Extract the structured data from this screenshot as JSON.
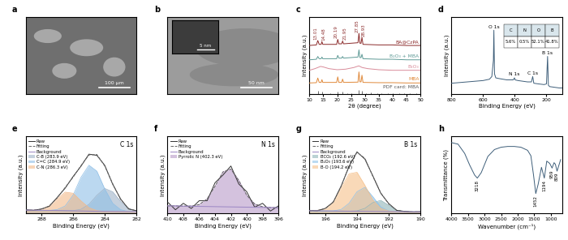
{
  "images": [
    {
      "panel": "a",
      "scale_bar": "100 μm"
    },
    {
      "panel": "b",
      "scale_bar": "50 nm",
      "inset_scale_bar": "5 nm"
    }
  ],
  "chart_data": [
    {
      "panel": "c",
      "type": "line",
      "x_label": "2θ (degree)",
      "y_label": "Intensity (a.u.)",
      "xlim": [
        10,
        50
      ],
      "xticks": [
        10,
        15,
        20,
        25,
        30,
        35,
        40,
        45,
        50
      ],
      "ylim": [
        0,
        14
      ],
      "tick_labels": "x",
      "annotations": [
        {
          "text": "13.01",
          "x": 13.01
        },
        {
          "text": "14.48",
          "x": 14.48
        },
        {
          "text": "20.19",
          "x": 20.19
        },
        {
          "text": "21.95",
          "x": 21.95
        },
        {
          "text": "27.85",
          "x": 27.85
        },
        {
          "text": "28.93",
          "x": 28.93
        }
      ],
      "series": [
        {
          "name": "BA@CzPA",
          "color": "#8b2b2b",
          "type": "line",
          "x": [
            10,
            12.5,
            13,
            13.5,
            14.2,
            14.5,
            14.8,
            19.8,
            20.2,
            20.6,
            21.6,
            21.95,
            22.3,
            27.5,
            27.85,
            28.2,
            28.6,
            28.93,
            29.3,
            35,
            40,
            45,
            50
          ],
          "values": [
            8.8,
            8.9,
            9.7,
            9.0,
            9.0,
            9.5,
            9.0,
            9.0,
            9.9,
            9.1,
            9.1,
            9.6,
            9.1,
            9.3,
            11.0,
            9.2,
            9.2,
            10.3,
            9.0,
            8.9,
            8.9,
            8.8,
            8.8
          ]
        },
        {
          "name": "B₂O₃ + MBA",
          "color": "#5e9a96",
          "type": "line",
          "x": [
            10,
            12.5,
            13,
            13.5,
            14.2,
            14.5,
            14.8,
            19.8,
            20.2,
            20.6,
            21.6,
            21.95,
            22.3,
            27.5,
            27.85,
            28.2,
            28.6,
            28.93,
            29.3,
            35,
            40,
            45,
            50
          ],
          "values": [
            6.2,
            6.3,
            6.8,
            6.4,
            6.4,
            6.7,
            6.4,
            6.4,
            7.0,
            6.5,
            6.5,
            6.8,
            6.5,
            6.7,
            8.0,
            6.6,
            6.6,
            7.2,
            6.4,
            6.3,
            6.3,
            6.2,
            6.2
          ]
        },
        {
          "name": "B₂O₃",
          "color": "#d98c9a",
          "type": "line",
          "x": [
            10,
            12,
            14,
            15,
            17,
            20,
            23,
            26,
            27.8,
            29,
            31,
            35,
            40,
            45,
            50
          ],
          "values": [
            4.3,
            4.6,
            5.0,
            4.9,
            4.6,
            4.4,
            4.5,
            4.8,
            5.1,
            4.8,
            4.6,
            4.4,
            4.3,
            4.3,
            4.3
          ]
        },
        {
          "name": "MBA",
          "color": "#e08a3c",
          "type": "line",
          "x": [
            10,
            12.5,
            13,
            13.5,
            14.2,
            14.5,
            14.8,
            19.8,
            20.2,
            20.6,
            21.6,
            21.95,
            22.3,
            27.5,
            27.85,
            28.2,
            28.6,
            28.93,
            29.3,
            35,
            40,
            45,
            50
          ],
          "values": [
            2.0,
            2.05,
            2.9,
            2.1,
            2.1,
            2.6,
            2.1,
            2.1,
            3.1,
            2.1,
            2.1,
            2.7,
            2.1,
            2.15,
            4.0,
            2.2,
            2.2,
            3.4,
            2.1,
            2.05,
            2.05,
            2.0,
            2.0
          ]
        },
        {
          "name": "PDF card: MBA",
          "color": "#555555",
          "type": "stem",
          "x": [
            13.0,
            14.5,
            17.5,
            20.2,
            21.9,
            23.5,
            25.0,
            27.8,
            28.9,
            30.3,
            32.0,
            34.5,
            36.0,
            38.2,
            40.1,
            42.5,
            44.0,
            46.3,
            48.5
          ],
          "values": [
            0.6,
            0.4,
            0.2,
            0.5,
            0.4,
            0.2,
            0.2,
            0.7,
            0.6,
            0.2,
            0.3,
            0.2,
            0.2,
            0.2,
            0.2,
            0.15,
            0.2,
            0.15,
            0.15
          ]
        }
      ]
    },
    {
      "panel": "d",
      "type": "line",
      "x_label": "Binding Energy (eV)",
      "y_label": "Intensity (a.u.)",
      "xlim": [
        800,
        100
      ],
      "xticks": [
        800,
        600,
        400,
        200
      ],
      "ylim": [
        0,
        11.5
      ],
      "tick_labels": "x",
      "annotations": [
        {
          "text": "O 1s",
          "x": 532
        },
        {
          "text": "N 1s",
          "x": 402
        },
        {
          "text": "C 1s",
          "x": 287
        },
        {
          "text": "B 1s",
          "x": 193
        }
      ],
      "table": {
        "columns": [
          "C",
          "N",
          "O",
          "B"
        ],
        "rows": [
          [
            "5.6%",
            "0.5%",
            "52.1%",
            "41.8%"
          ]
        ]
      },
      "series": [
        {
          "color": "#3f5f7a",
          "type": "line",
          "x": [
            800,
            750,
            700,
            650,
            600,
            560,
            545,
            535,
            532,
            528,
            520,
            500,
            450,
            410,
            402,
            398,
            380,
            320,
            295,
            287,
            284,
            280,
            250,
            215,
            200,
            193,
            188,
            180,
            150,
            120,
            100
          ],
          "values": [
            1.6,
            1.7,
            1.8,
            1.9,
            2.0,
            2.2,
            2.6,
            5.0,
            9.5,
            3.0,
            2.4,
            2.3,
            2.1,
            2.1,
            2.4,
            2.1,
            2.0,
            1.8,
            1.8,
            2.6,
            2.2,
            1.6,
            1.5,
            1.4,
            1.5,
            5.6,
            1.3,
            1.1,
            1.0,
            0.9,
            0.9
          ]
        }
      ]
    },
    {
      "panel": "e",
      "type": "line",
      "title": "C 1s",
      "x_label": "Binding Energy (eV)",
      "y_label": "Intensity (a.u.)",
      "x": [
        289,
        288.5,
        288,
        287.5,
        287,
        286.5,
        286,
        285.5,
        285,
        284.5,
        284,
        283.5,
        283,
        282.5,
        282
      ],
      "xlim": [
        289,
        282
      ],
      "xticks": [
        288,
        286,
        284,
        282
      ],
      "ylim": [
        0,
        10
      ],
      "tick_labels": "x",
      "legend": "upper left",
      "series": [
        {
          "name": "Raw",
          "color": "#333333",
          "type": "line",
          "line_style": "solid",
          "values": [
            0.5,
            0.42,
            0.6,
            0.95,
            2.1,
            3.3,
            4.8,
            6.15,
            7.7,
            7.55,
            6.25,
            3.8,
            1.9,
            0.6,
            0.38
          ]
        },
        {
          "name": "Fitting",
          "color": "#666666",
          "type": "line",
          "line_style": "dashed",
          "values": [
            0.45,
            0.45,
            0.56,
            1.0,
            2.04,
            3.39,
            4.71,
            6.23,
            7.6,
            7.66,
            6.16,
            3.88,
            1.82,
            0.67,
            0.33
          ]
        },
        {
          "name": "Background",
          "color": "#9b86c4",
          "type": "line",
          "line_style": "solid",
          "values": [
            0.45,
            0.44,
            0.43,
            0.42,
            0.4,
            0.38,
            0.36,
            0.34,
            0.32,
            0.3,
            0.29,
            0.28,
            0.27,
            0.26,
            0.25
          ]
        },
        {
          "name": "C-B (283.9 eV)",
          "color": "#9fb3c8",
          "type": "area",
          "values": [
            0.45,
            0.44,
            0.43,
            0.42,
            0.4,
            0.38,
            0.39,
            0.56,
            1.2,
            2.37,
            3.26,
            2.83,
            1.58,
            0.67,
            0.33
          ]
        },
        {
          "name": "C=C (284.9 eV)",
          "color": "#8fbfe6",
          "type": "area",
          "values": [
            0.45,
            0.44,
            0.43,
            0.42,
            0.52,
            0.99,
            2.4,
            4.71,
            6.27,
            5.5,
            3.19,
            1.33,
            0.51,
            0.26,
            0.25
          ]
        },
        {
          "name": "C-N (286.3 eV)",
          "color": "#f2b98a",
          "type": "area",
          "values": [
            0.45,
            0.45,
            0.56,
            1.0,
            1.92,
            2.78,
            2.64,
            1.64,
            0.77,
            0.39,
            0.29,
            0.28,
            0.27,
            0.26,
            0.25
          ]
        }
      ]
    },
    {
      "panel": "f",
      "type": "line",
      "title": "N 1s",
      "x_label": "Binding Energy (eV)",
      "y_label": "Intensity (a.u.)",
      "x": [
        410,
        409,
        408,
        407,
        406,
        405,
        404,
        403,
        402,
        401,
        400,
        399,
        398,
        397,
        396
      ],
      "xlim": [
        410,
        396
      ],
      "xticks": [
        410,
        408,
        406,
        404,
        402,
        400,
        398,
        396
      ],
      "ylim": [
        0,
        6
      ],
      "tick_labels": "x",
      "legend": "upper left",
      "series": [
        {
          "name": "Raw",
          "color": "#333333",
          "type": "line",
          "line_style": "solid",
          "values": [
            0.9,
            0.3,
            0.8,
            0.4,
            1.0,
            1.0,
            2.4,
            3.0,
            3.7,
            2.3,
            1.7,
            0.5,
            0.8,
            0.2,
            0.6
          ]
        },
        {
          "name": "Fitting",
          "color": "#666666",
          "type": "line",
          "line_style": "dashed",
          "values": [
            0.6,
            0.6,
            0.58,
            0.59,
            0.7,
            1.14,
            2.12,
            3.24,
            3.46,
            2.58,
            1.43,
            0.75,
            0.53,
            0.47,
            0.46
          ]
        },
        {
          "name": "Background",
          "color": "#9b86c4",
          "type": "line",
          "line_style": "solid",
          "values": [
            0.6,
            0.6,
            0.58,
            0.57,
            0.56,
            0.55,
            0.54,
            0.53,
            0.52,
            0.51,
            0.5,
            0.49,
            0.48,
            0.47,
            0.46
          ]
        },
        {
          "name": "Pyrrolic N (402.3 eV)",
          "color": "#b89ac9",
          "type": "area",
          "values": [
            0.6,
            0.6,
            0.58,
            0.59,
            0.7,
            1.14,
            2.12,
            3.24,
            3.46,
            2.58,
            1.43,
            0.75,
            0.53,
            0.47,
            0.46
          ]
        }
      ]
    },
    {
      "panel": "g",
      "type": "line",
      "title": "B 1s",
      "x_label": "Binding Energy (eV)",
      "y_label": "Intensity (a.u.)",
      "x": [
        197,
        196.5,
        196,
        195.5,
        195,
        194.5,
        194,
        193.5,
        193,
        192.5,
        192,
        191.5,
        191,
        190.5,
        190
      ],
      "xlim": [
        197,
        190
      ],
      "xticks": [
        196,
        194,
        192,
        190
      ],
      "ylim": [
        0,
        9.5
      ],
      "tick_labels": "x",
      "legend": "upper left",
      "series": [
        {
          "name": "Raw",
          "color": "#333333",
          "type": "line",
          "line_style": "solid",
          "values": [
            0.4,
            0.35,
            0.65,
            1.4,
            3.4,
            5.8,
            7.6,
            6.7,
            4.65,
            2.5,
            1.25,
            0.4,
            0.28,
            0.2,
            0.24
          ]
        },
        {
          "name": "Fitting",
          "color": "#666666",
          "type": "line",
          "line_style": "dashed",
          "values": [
            0.35,
            0.39,
            0.61,
            1.44,
            3.34,
            5.87,
            7.54,
            6.81,
            4.57,
            2.57,
            1.18,
            0.43,
            0.25,
            0.22,
            0.21
          ]
        },
        {
          "name": "Background",
          "color": "#9b86c4",
          "type": "line",
          "line_style": "solid",
          "values": [
            0.35,
            0.34,
            0.33,
            0.32,
            0.31,
            0.3,
            0.29,
            0.28,
            0.27,
            0.26,
            0.25,
            0.24,
            0.23,
            0.22,
            0.21
          ]
        },
        {
          "name": "BCO₂ (192.6 eV)",
          "color": "#8fb4b8",
          "type": "area",
          "values": [
            0.35,
            0.34,
            0.33,
            0.32,
            0.31,
            0.3,
            0.34,
            0.65,
            1.35,
            1.63,
            1.03,
            0.43,
            0.25,
            0.22,
            0.21
          ]
        },
        {
          "name": "B₂O₃ (193.6 eV)",
          "color": "#8fc2e8",
          "type": "area",
          "values": [
            0.35,
            0.34,
            0.33,
            0.34,
            0.51,
            1.27,
            2.69,
            3.24,
            2.09,
            0.82,
            0.33,
            0.24,
            0.23,
            0.22,
            0.21
          ]
        },
        {
          "name": "B-O (194.2 eV)",
          "color": "#f5c08a",
          "type": "area",
          "values": [
            0.35,
            0.39,
            0.61,
            1.42,
            3.14,
            4.9,
            5.09,
            3.48,
            1.67,
            0.64,
            0.32,
            0.24,
            0.23,
            0.22,
            0.21
          ]
        }
      ]
    },
    {
      "panel": "h",
      "type": "line",
      "x_label": "Wavenumber (cm⁻¹)",
      "y_label": "Transmittance (%)",
      "xlim": [
        4000,
        650
      ],
      "xticks": [
        4000,
        3500,
        3000,
        2500,
        2000,
        1500,
        1000
      ],
      "ylim": [
        0,
        10
      ],
      "tick_labels": "x",
      "annotations": [
        {
          "text": "3218",
          "x": 3218
        },
        {
          "text": "1452",
          "x": 1452
        },
        {
          "text": "1194",
          "x": 1194
        },
        {
          "text": "959",
          "x": 959
        },
        {
          "text": "809",
          "x": 809
        }
      ],
      "series": [
        {
          "color": "#3f5f7a",
          "type": "line",
          "x": [
            4000,
            3800,
            3600,
            3450,
            3300,
            3218,
            3100,
            2900,
            2700,
            2500,
            2300,
            2100,
            1900,
            1700,
            1600,
            1520,
            1452,
            1380,
            1280,
            1194,
            1120,
            1030,
            959,
            900,
            860,
            809,
            700
          ],
          "values": [
            9.2,
            9.0,
            7.8,
            6.3,
            5.0,
            4.6,
            5.3,
            7.4,
            8.3,
            8.6,
            8.7,
            8.7,
            8.6,
            8.2,
            7.5,
            5.0,
            2.6,
            3.8,
            6.0,
            4.6,
            6.8,
            6.5,
            5.9,
            6.6,
            6.4,
            5.5,
            7.0
          ]
        }
      ]
    }
  ]
}
